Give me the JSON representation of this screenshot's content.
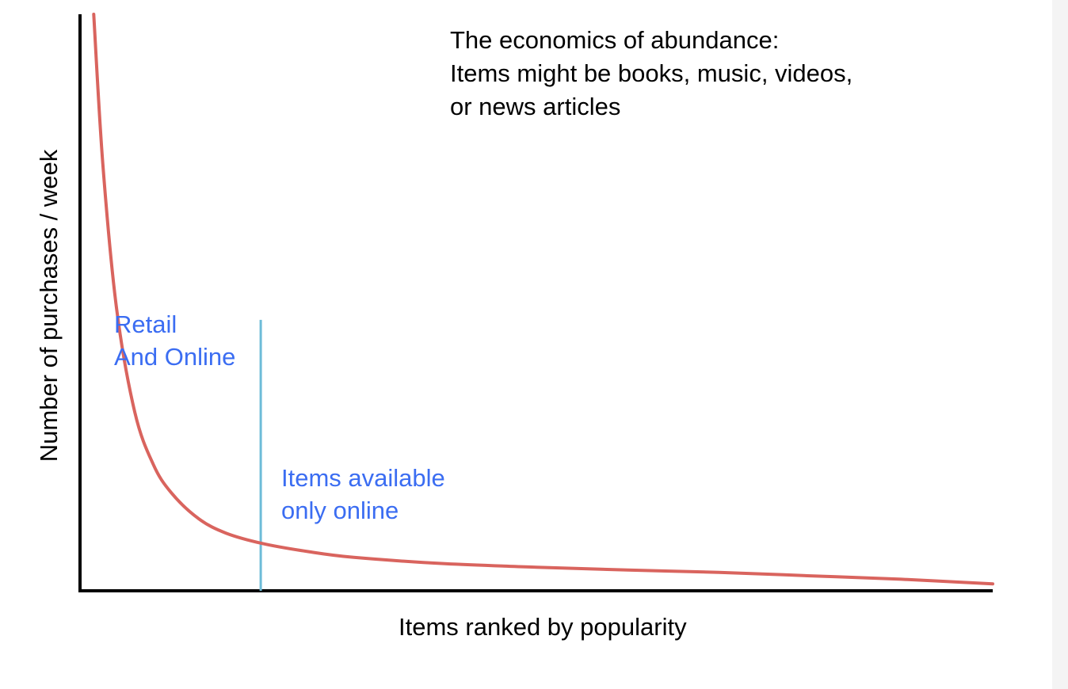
{
  "title_lines": [
    "The economics of abundance:",
    "Items might be books, music, videos,",
    "or news articles"
  ],
  "xlabel": "Items ranked by popularity",
  "ylabel": "Number of purchases / week",
  "regions": {
    "left": [
      "Retail",
      "And Online"
    ],
    "right": [
      "Items available",
      "only online"
    ]
  },
  "colors": {
    "curve": "#d9645e",
    "divider": "#6dbcd8",
    "region_text": "#3b6df2",
    "axis": "#000000"
  },
  "chart_data": {
    "type": "line",
    "description_of_shape": "long-tail (decreasing power-law) curve",
    "xlabel": "Items ranked by popularity",
    "ylabel": "Number of purchases / week",
    "xlim": [
      0,
      100
    ],
    "ylim": [
      0,
      100
    ],
    "series": [
      {
        "x": [
          1.5,
          2.5,
          4,
          6,
          8,
          10,
          13,
          16,
          20,
          25,
          30,
          40,
          50,
          60,
          70,
          80,
          90,
          100
        ],
        "values": [
          100,
          74,
          49,
          31,
          22,
          17,
          12.5,
          10,
          8.2,
          6.8,
          5.8,
          4.7,
          4.1,
          3.6,
          3.2,
          2.6,
          2.0,
          1.2
        ]
      }
    ],
    "divider_x": 19.8,
    "divider_top_y": 47
  }
}
